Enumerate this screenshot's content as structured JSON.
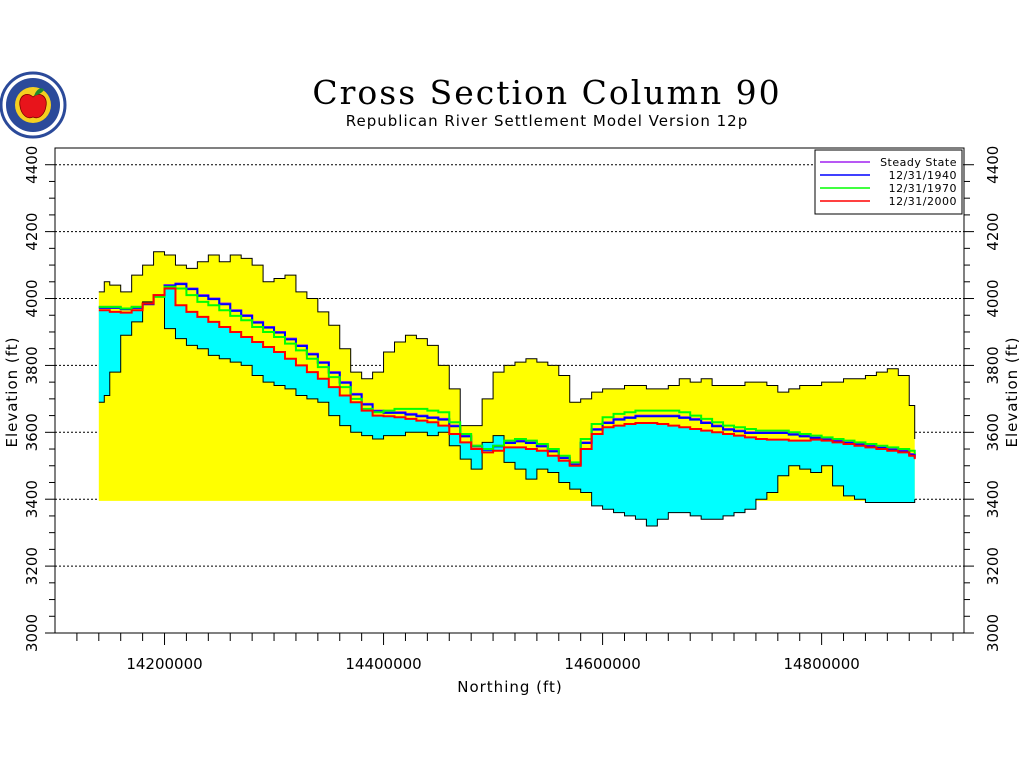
{
  "chart_data": {
    "type": "area",
    "title": "Cross Section Column 90",
    "subtitle": "Republican River Settlement Model Version 12p",
    "xlabel": "Northing (ft)",
    "ylabel_left": "Elevation (ft)",
    "ylabel_right": "Elevation (ft)",
    "xlim": [
      14100000,
      14930000
    ],
    "ylim": [
      3000,
      4450
    ],
    "x_ticks": [
      14200000,
      14400000,
      14600000,
      14800000
    ],
    "x_tick_labels": [
      "14200000",
      "14400000",
      "14600000",
      "14800000"
    ],
    "y_ticks": [
      3000,
      3200,
      3400,
      3600,
      3800,
      4000,
      4200,
      4400
    ],
    "y_tick_labels": [
      "3000",
      "3200",
      "3400",
      "3600",
      "3800",
      "4000",
      "4200",
      "4400"
    ],
    "grid": "horizontal dotted",
    "legend_position": "top-right",
    "layers": {
      "land_surface": {
        "color": "#ffff00",
        "x": [
          14140000,
          14145000,
          14150000,
          14160000,
          14170000,
          14180000,
          14190000,
          14200000,
          14210000,
          14220000,
          14230000,
          14240000,
          14250000,
          14260000,
          14270000,
          14280000,
          14290000,
          14300000,
          14310000,
          14320000,
          14330000,
          14340000,
          14350000,
          14360000,
          14370000,
          14380000,
          14390000,
          14400000,
          14410000,
          14420000,
          14430000,
          14440000,
          14450000,
          14460000,
          14470000,
          14480000,
          14490000,
          14500000,
          14510000,
          14520000,
          14530000,
          14540000,
          14550000,
          14560000,
          14570000,
          14580000,
          14590000,
          14600000,
          14610000,
          14620000,
          14630000,
          14640000,
          14650000,
          14660000,
          14670000,
          14680000,
          14690000,
          14700000,
          14710000,
          14720000,
          14730000,
          14740000,
          14750000,
          14760000,
          14770000,
          14780000,
          14790000,
          14800000,
          14810000,
          14820000,
          14830000,
          14840000,
          14850000,
          14860000,
          14870000,
          14880000,
          14885000
        ],
        "values": [
          4020,
          4050,
          4040,
          4020,
          4070,
          4100,
          4140,
          4130,
          4100,
          4090,
          4110,
          4130,
          4110,
          4130,
          4120,
          4100,
          4050,
          4060,
          4070,
          4020,
          4000,
          3960,
          3920,
          3850,
          3780,
          3760,
          3780,
          3840,
          3870,
          3890,
          3880,
          3860,
          3800,
          3730,
          3620,
          3620,
          3700,
          3780,
          3800,
          3810,
          3820,
          3810,
          3800,
          3770,
          3690,
          3700,
          3720,
          3730,
          3730,
          3740,
          3740,
          3730,
          3730,
          3740,
          3760,
          3750,
          3760,
          3740,
          3740,
          3740,
          3750,
          3750,
          3740,
          3720,
          3730,
          3740,
          3740,
          3750,
          3750,
          3760,
          3760,
          3770,
          3780,
          3790,
          3770,
          3680,
          3580
        ]
      },
      "aquifer_bottom": {
        "color": "#00ffff",
        "x": [
          14140000,
          14145000,
          14150000,
          14160000,
          14170000,
          14180000,
          14190000,
          14200000,
          14210000,
          14220000,
          14230000,
          14240000,
          14250000,
          14260000,
          14270000,
          14280000,
          14290000,
          14300000,
          14310000,
          14320000,
          14330000,
          14340000,
          14350000,
          14360000,
          14370000,
          14380000,
          14390000,
          14400000,
          14410000,
          14420000,
          14430000,
          14440000,
          14450000,
          14460000,
          14470000,
          14480000,
          14490000,
          14500000,
          14510000,
          14520000,
          14530000,
          14540000,
          14550000,
          14560000,
          14570000,
          14580000,
          14590000,
          14600000,
          14610000,
          14620000,
          14630000,
          14640000,
          14650000,
          14660000,
          14670000,
          14680000,
          14690000,
          14700000,
          14710000,
          14720000,
          14730000,
          14740000,
          14750000,
          14760000,
          14770000,
          14780000,
          14790000,
          14800000,
          14810000,
          14820000,
          14830000,
          14840000,
          14850000,
          14860000,
          14870000,
          14880000,
          14885000
        ],
        "values": [
          3690,
          3710,
          3780,
          3890,
          3930,
          3990,
          4010,
          3910,
          3880,
          3860,
          3850,
          3830,
          3820,
          3810,
          3800,
          3770,
          3750,
          3740,
          3730,
          3710,
          3700,
          3690,
          3650,
          3620,
          3600,
          3590,
          3580,
          3590,
          3590,
          3600,
          3600,
          3590,
          3600,
          3560,
          3520,
          3490,
          3570,
          3590,
          3510,
          3490,
          3460,
          3490,
          3480,
          3450,
          3430,
          3420,
          3380,
          3370,
          3360,
          3350,
          3340,
          3320,
          3340,
          3360,
          3360,
          3350,
          3340,
          3340,
          3350,
          3360,
          3370,
          3400,
          3420,
          3470,
          3500,
          3490,
          3480,
          3500,
          3440,
          3410,
          3400,
          3390,
          3390,
          3390,
          3390,
          3390,
          3400
        ]
      }
    },
    "series": [
      {
        "name": "Steady State",
        "color": "#a020f0",
        "x": [
          14140000,
          14150000,
          14160000,
          14170000,
          14180000,
          14190000,
          14200000,
          14210000,
          14220000,
          14230000,
          14240000,
          14250000,
          14260000,
          14270000,
          14280000,
          14290000,
          14300000,
          14310000,
          14320000,
          14330000,
          14340000,
          14350000,
          14360000,
          14370000,
          14380000,
          14390000,
          14400000,
          14410000,
          14420000,
          14430000,
          14440000,
          14450000,
          14460000,
          14470000,
          14480000,
          14490000,
          14500000,
          14510000,
          14520000,
          14530000,
          14540000,
          14550000,
          14560000,
          14570000,
          14580000,
          14590000,
          14600000,
          14610000,
          14620000,
          14630000,
          14640000,
          14650000,
          14660000,
          14670000,
          14680000,
          14690000,
          14700000,
          14710000,
          14720000,
          14730000,
          14740000,
          14750000,
          14760000,
          14770000,
          14780000,
          14790000,
          14800000,
          14810000,
          14820000,
          14830000,
          14840000,
          14850000,
          14860000,
          14870000,
          14880000,
          14885000
        ],
        "values": [
          3975,
          3975,
          3970,
          3975,
          3985,
          4010,
          4040,
          4045,
          4030,
          4010,
          4000,
          3985,
          3965,
          3950,
          3930,
          3915,
          3900,
          3880,
          3860,
          3835,
          3810,
          3780,
          3750,
          3715,
          3685,
          3665,
          3660,
          3660,
          3655,
          3650,
          3645,
          3640,
          3620,
          3590,
          3560,
          3550,
          3560,
          3570,
          3575,
          3570,
          3560,
          3545,
          3525,
          3505,
          3570,
          3610,
          3630,
          3640,
          3645,
          3650,
          3650,
          3650,
          3650,
          3645,
          3640,
          3630,
          3620,
          3610,
          3605,
          3600,
          3600,
          3600,
          3600,
          3595,
          3590,
          3585,
          3580,
          3575,
          3570,
          3565,
          3560,
          3555,
          3550,
          3545,
          3535,
          3525
        ]
      },
      {
        "name": "12/31/1940",
        "color": "#0000ff",
        "x": [
          14140000,
          14150000,
          14160000,
          14170000,
          14180000,
          14190000,
          14200000,
          14210000,
          14220000,
          14230000,
          14240000,
          14250000,
          14260000,
          14270000,
          14280000,
          14290000,
          14300000,
          14310000,
          14320000,
          14330000,
          14340000,
          14350000,
          14360000,
          14370000,
          14380000,
          14390000,
          14400000,
          14410000,
          14420000,
          14430000,
          14440000,
          14450000,
          14460000,
          14470000,
          14480000,
          14490000,
          14500000,
          14510000,
          14520000,
          14530000,
          14540000,
          14550000,
          14560000,
          14570000,
          14580000,
          14590000,
          14600000,
          14610000,
          14620000,
          14630000,
          14640000,
          14650000,
          14660000,
          14670000,
          14680000,
          14690000,
          14700000,
          14710000,
          14720000,
          14730000,
          14740000,
          14750000,
          14760000,
          14770000,
          14780000,
          14790000,
          14800000,
          14810000,
          14820000,
          14830000,
          14840000,
          14850000,
          14860000,
          14870000,
          14880000,
          14885000
        ],
        "values": [
          3972,
          3972,
          3968,
          3972,
          3983,
          4008,
          4038,
          4043,
          4028,
          4008,
          3998,
          3983,
          3963,
          3948,
          3928,
          3913,
          3898,
          3878,
          3858,
          3833,
          3808,
          3778,
          3748,
          3713,
          3683,
          3663,
          3658,
          3658,
          3653,
          3648,
          3643,
          3638,
          3618,
          3588,
          3558,
          3548,
          3558,
          3568,
          3573,
          3568,
          3558,
          3543,
          3523,
          3503,
          3568,
          3608,
          3628,
          3638,
          3643,
          3648,
          3648,
          3648,
          3648,
          3643,
          3638,
          3628,
          3618,
          3608,
          3603,
          3598,
          3598,
          3598,
          3598,
          3593,
          3588,
          3583,
          3578,
          3573,
          3568,
          3563,
          3558,
          3553,
          3548,
          3543,
          3533,
          3523
        ]
      },
      {
        "name": "12/31/1970",
        "color": "#00ff00",
        "x": [
          14140000,
          14150000,
          14160000,
          14170000,
          14180000,
          14190000,
          14200000,
          14210000,
          14220000,
          14230000,
          14240000,
          14250000,
          14260000,
          14270000,
          14280000,
          14290000,
          14300000,
          14310000,
          14320000,
          14330000,
          14340000,
          14350000,
          14360000,
          14370000,
          14380000,
          14390000,
          14400000,
          14410000,
          14420000,
          14430000,
          14440000,
          14450000,
          14460000,
          14470000,
          14480000,
          14490000,
          14500000,
          14510000,
          14520000,
          14530000,
          14540000,
          14550000,
          14560000,
          14570000,
          14580000,
          14590000,
          14600000,
          14610000,
          14620000,
          14630000,
          14640000,
          14650000,
          14660000,
          14670000,
          14680000,
          14690000,
          14700000,
          14710000,
          14720000,
          14730000,
          14740000,
          14750000,
          14760000,
          14770000,
          14780000,
          14790000,
          14800000,
          14810000,
          14820000,
          14830000,
          14840000,
          14850000,
          14860000,
          14870000,
          14880000,
          14885000
        ],
        "values": [
          3975,
          3975,
          3970,
          3975,
          3985,
          4005,
          4035,
          4030,
          4010,
          3990,
          3980,
          3965,
          3948,
          3935,
          3915,
          3900,
          3885,
          3865,
          3845,
          3820,
          3795,
          3765,
          3735,
          3700,
          3670,
          3660,
          3665,
          3670,
          3670,
          3670,
          3665,
          3660,
          3630,
          3595,
          3560,
          3550,
          3560,
          3575,
          3580,
          3575,
          3565,
          3550,
          3530,
          3510,
          3580,
          3625,
          3645,
          3655,
          3660,
          3665,
          3665,
          3665,
          3665,
          3660,
          3650,
          3640,
          3630,
          3620,
          3615,
          3610,
          3605,
          3605,
          3605,
          3600,
          3595,
          3590,
          3585,
          3580,
          3575,
          3570,
          3565,
          3560,
          3555,
          3550,
          3545,
          3535
        ]
      },
      {
        "name": "12/31/2000",
        "color": "#ff0000",
        "x": [
          14140000,
          14150000,
          14160000,
          14170000,
          14180000,
          14190000,
          14200000,
          14210000,
          14220000,
          14230000,
          14240000,
          14250000,
          14260000,
          14270000,
          14280000,
          14290000,
          14300000,
          14310000,
          14320000,
          14330000,
          14340000,
          14350000,
          14360000,
          14370000,
          14380000,
          14390000,
          14400000,
          14410000,
          14420000,
          14430000,
          14440000,
          14450000,
          14460000,
          14470000,
          14480000,
          14490000,
          14500000,
          14510000,
          14520000,
          14530000,
          14540000,
          14550000,
          14560000,
          14570000,
          14580000,
          14590000,
          14600000,
          14610000,
          14620000,
          14630000,
          14640000,
          14650000,
          14660000,
          14670000,
          14680000,
          14690000,
          14700000,
          14710000,
          14720000,
          14730000,
          14740000,
          14750000,
          14760000,
          14770000,
          14780000,
          14790000,
          14800000,
          14810000,
          14820000,
          14830000,
          14840000,
          14850000,
          14860000,
          14870000,
          14880000,
          14885000
        ],
        "values": [
          3965,
          3960,
          3958,
          3965,
          3985,
          4010,
          4030,
          3980,
          3960,
          3945,
          3930,
          3915,
          3900,
          3885,
          3870,
          3855,
          3840,
          3820,
          3800,
          3780,
          3760,
          3735,
          3710,
          3690,
          3665,
          3650,
          3648,
          3645,
          3640,
          3635,
          3630,
          3620,
          3595,
          3570,
          3550,
          3540,
          3545,
          3555,
          3555,
          3550,
          3545,
          3530,
          3515,
          3500,
          3550,
          3595,
          3615,
          3620,
          3625,
          3628,
          3628,
          3625,
          3620,
          3615,
          3610,
          3605,
          3600,
          3595,
          3590,
          3585,
          3580,
          3578,
          3578,
          3575,
          3575,
          3578,
          3575,
          3570,
          3565,
          3560,
          3555,
          3550,
          3545,
          3540,
          3530,
          3520
        ]
      }
    ]
  },
  "logo": {
    "name": "seal",
    "ring_color": "#2b4a9a",
    "inner_color": "#f5d020",
    "apple_color": "#e8141b",
    "leaf_color": "#1e8a2e"
  }
}
